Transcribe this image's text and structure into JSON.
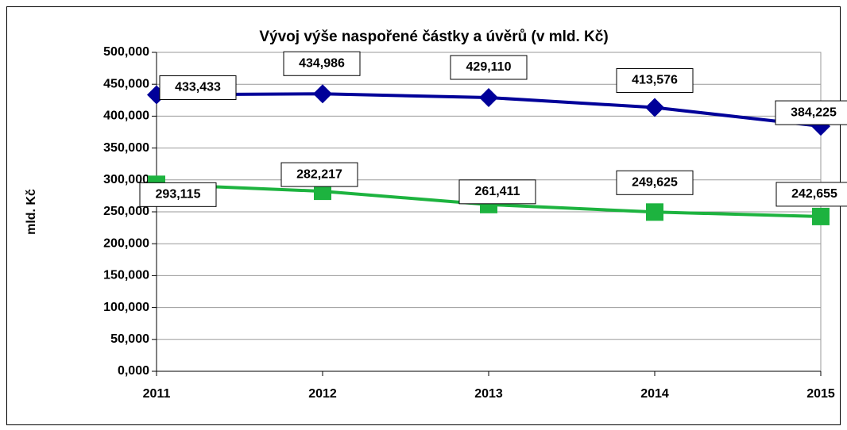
{
  "chart_data": {
    "type": "line",
    "title": "Vývoj výše naspořené částky a úvěrů (v mld. Kč)",
    "y_label": "mld. Kč",
    "categories": [
      "2011",
      "2012",
      "2013",
      "2014",
      "2015"
    ],
    "series": [
      {
        "color": "#000099",
        "marker": "diamond",
        "values": [
          433.433,
          434.986,
          429.11,
          413.576,
          384.225
        ],
        "value_labels": [
          "433,433",
          "434,986",
          "429,110",
          "413,576",
          "384,225"
        ]
      },
      {
        "color": "#1db33f",
        "marker": "square",
        "values": [
          293.115,
          282.217,
          261.411,
          249.625,
          242.655
        ],
        "value_labels": [
          "293,115",
          "282,217",
          "261,411",
          "249,625",
          "242,655"
        ]
      }
    ],
    "ylim": [
      0,
      500
    ],
    "yticks": [
      {
        "value": 0,
        "label": "0,000"
      },
      {
        "value": 50,
        "label": "50,000"
      },
      {
        "value": 100,
        "label": "100,000"
      },
      {
        "value": 150,
        "label": "150,000"
      },
      {
        "value": 200,
        "label": "200,000"
      },
      {
        "value": 250,
        "label": "250,000"
      },
      {
        "value": 300,
        "label": "300,000"
      },
      {
        "value": 350,
        "label": "350,000"
      },
      {
        "value": 400,
        "label": "400,000"
      },
      {
        "value": 450,
        "label": "450,000"
      },
      {
        "value": 500,
        "label": "500,000"
      }
    ],
    "grid": true
  }
}
